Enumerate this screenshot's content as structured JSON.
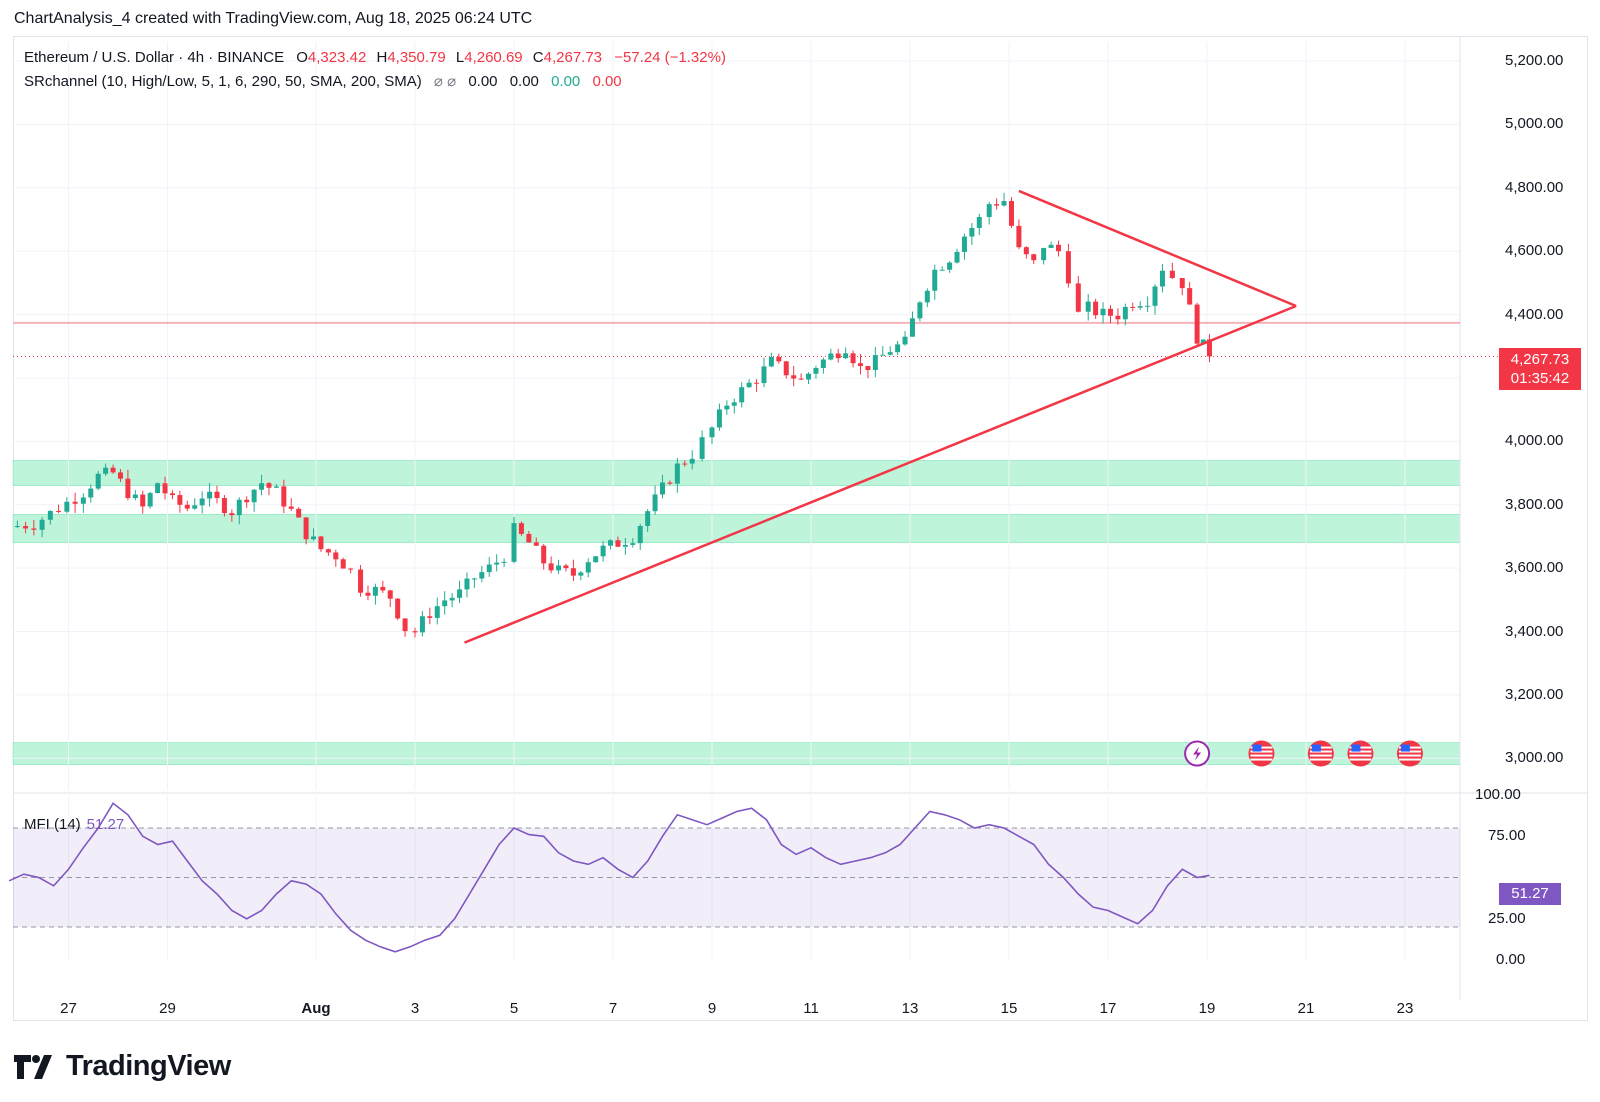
{
  "header": {
    "caption": "ChartAnalysis_4 created with TradingView.com, Aug 18, 2025 06:24 UTC"
  },
  "legend": {
    "symbol": "Ethereum / U.S. Dollar · 4h · BINANCE",
    "o_label": "O",
    "o": "4,323.42",
    "h_label": "H",
    "h": "4,350.79",
    "l_label": "L",
    "l": "4,260.69",
    "c_label": "C",
    "c": "4,267.73",
    "change": "−57.24 (−1.32%)",
    "indicator": "SRchannel (10, High/Low, 5, 1, 6, 290, 50, SMA, 200, SMA)",
    "ind_icons": "⌀ ⌀",
    "ind_v1": "0.00",
    "ind_v2": "0.00",
    "ind_v3": "0.00",
    "ind_v4": "0.00"
  },
  "price_tag": {
    "price": "4,267.73",
    "countdown": "01:35:42"
  },
  "mfi": {
    "label": "MFI (14)",
    "value": "51.27"
  },
  "branding": {
    "name": "TradingView"
  },
  "colors": {
    "up": "#22ab94",
    "down": "#f23645",
    "zone": "#b2f2d4",
    "mfi": "#7e57c2",
    "trend": "#f23645"
  },
  "chart_data": {
    "type": "candlestick",
    "title": "Ethereum / U.S. Dollar · 4h · BINANCE",
    "y_axis": {
      "range": [
        2900,
        5260
      ],
      "ticks": [
        "5,200.00",
        "5,000.00",
        "4,800.00",
        "4,600.00",
        "4,400.00",
        "4,200.00",
        "4,000.00",
        "3,800.00",
        "3,600.00",
        "3,400.00",
        "3,200.00",
        "3,000.00"
      ],
      "tick_values": [
        5200,
        5000,
        4800,
        4600,
        4400,
        4200,
        4000,
        3800,
        3600,
        3400,
        3200,
        3000
      ]
    },
    "x_axis": {
      "ticks": [
        "27",
        "29",
        "Aug",
        "3",
        "5",
        "7",
        "9",
        "11",
        "13",
        "15",
        "17",
        "19",
        "21",
        "23"
      ],
      "tick_days": [
        -5,
        -3,
        0,
        2,
        4,
        6,
        8,
        10,
        12,
        14,
        16,
        18,
        20,
        22
      ]
    },
    "close_path": [
      [
        -6.2,
        3730
      ],
      [
        -5.7,
        3740
      ],
      [
        -5.2,
        3790
      ],
      [
        -4.7,
        3840
      ],
      [
        -4.4,
        3890
      ],
      [
        -4.1,
        3900
      ],
      [
        -3.8,
        3840
      ],
      [
        -3.5,
        3790
      ],
      [
        -3.2,
        3870
      ],
      [
        -2.9,
        3810
      ],
      [
        -2.6,
        3790
      ],
      [
        -2.3,
        3830
      ],
      [
        -2.0,
        3810
      ],
      [
        -1.7,
        3780
      ],
      [
        -1.4,
        3830
      ],
      [
        -1.1,
        3870
      ],
      [
        -0.8,
        3840
      ],
      [
        -0.5,
        3780
      ],
      [
        -0.2,
        3710
      ],
      [
        0.1,
        3660
      ],
      [
        0.4,
        3640
      ],
      [
        0.7,
        3590
      ],
      [
        0.9,
        3540
      ],
      [
        1.2,
        3530
      ],
      [
        1.5,
        3510
      ],
      [
        1.8,
        3410
      ],
      [
        2.0,
        3400
      ],
      [
        2.3,
        3460
      ],
      [
        2.6,
        3500
      ],
      [
        2.9,
        3520
      ],
      [
        3.2,
        3570
      ],
      [
        3.5,
        3600
      ],
      [
        3.8,
        3640
      ],
      [
        4.0,
        3720
      ],
      [
        4.3,
        3680
      ],
      [
        4.6,
        3620
      ],
      [
        4.9,
        3590
      ],
      [
        5.2,
        3580
      ],
      [
        5.5,
        3630
      ],
      [
        5.8,
        3660
      ],
      [
        6.1,
        3680
      ],
      [
        6.4,
        3700
      ],
      [
        6.7,
        3780
      ],
      [
        7.0,
        3850
      ],
      [
        7.3,
        3920
      ],
      [
        7.6,
        3960
      ],
      [
        8.0,
        4040
      ],
      [
        8.3,
        4120
      ],
      [
        8.6,
        4160
      ],
      [
        8.9,
        4200
      ],
      [
        9.2,
        4250
      ],
      [
        9.5,
        4220
      ],
      [
        9.8,
        4190
      ],
      [
        10.1,
        4240
      ],
      [
        10.4,
        4270
      ],
      [
        10.7,
        4300
      ],
      [
        11.0,
        4230
      ],
      [
        11.3,
        4250
      ],
      [
        11.6,
        4290
      ],
      [
        11.9,
        4310
      ],
      [
        12.2,
        4450
      ],
      [
        12.5,
        4540
      ],
      [
        12.8,
        4580
      ],
      [
        13.1,
        4650
      ],
      [
        13.4,
        4700
      ],
      [
        13.6,
        4750
      ],
      [
        13.9,
        4760
      ],
      [
        14.2,
        4600
      ],
      [
        14.5,
        4560
      ],
      [
        14.7,
        4620
      ],
      [
        15.0,
        4600
      ],
      [
        15.2,
        4520
      ],
      [
        15.4,
        4400
      ],
      [
        15.6,
        4420
      ],
      [
        15.9,
        4400
      ],
      [
        16.2,
        4400
      ],
      [
        16.5,
        4440
      ],
      [
        16.8,
        4450
      ],
      [
        17.1,
        4550
      ],
      [
        17.3,
        4520
      ],
      [
        17.5,
        4500
      ],
      [
        17.8,
        4330
      ],
      [
        18.05,
        4268
      ]
    ],
    "candles_last": {
      "open": 4323.42,
      "high": 4350.79,
      "low": 4260.69,
      "close": 4267.73
    },
    "support_zones": [
      [
        2980,
        3050
      ],
      [
        3680,
        3770
      ],
      [
        3860,
        3940
      ]
    ],
    "horizontal_line": 4374,
    "trendlines": [
      {
        "name": "ascending support",
        "from": [
          3.0,
          3365
        ],
        "to": [
          19.8,
          4427
        ]
      },
      {
        "name": "descending resistance",
        "from": [
          14.2,
          4790
        ],
        "to": [
          19.8,
          4427
        ]
      }
    ],
    "mfi": {
      "levels": [
        100,
        75,
        25,
        0
      ],
      "band": [
        20,
        80
      ],
      "values": [
        [
          -6.2,
          48
        ],
        [
          -5.9,
          52
        ],
        [
          -5.6,
          50
        ],
        [
          -5.3,
          45
        ],
        [
          -5.0,
          55
        ],
        [
          -4.7,
          68
        ],
        [
          -4.4,
          80
        ],
        [
          -4.1,
          95
        ],
        [
          -3.8,
          88
        ],
        [
          -3.5,
          75
        ],
        [
          -3.2,
          70
        ],
        [
          -2.9,
          72
        ],
        [
          -2.6,
          60
        ],
        [
          -2.3,
          48
        ],
        [
          -2.0,
          40
        ],
        [
          -1.7,
          30
        ],
        [
          -1.4,
          25
        ],
        [
          -1.1,
          30
        ],
        [
          -0.8,
          40
        ],
        [
          -0.5,
          48
        ],
        [
          -0.2,
          46
        ],
        [
          0.1,
          40
        ],
        [
          0.4,
          28
        ],
        [
          0.7,
          18
        ],
        [
          1.0,
          12
        ],
        [
          1.3,
          8
        ],
        [
          1.6,
          5
        ],
        [
          1.9,
          8
        ],
        [
          2.2,
          12
        ],
        [
          2.5,
          15
        ],
        [
          2.8,
          25
        ],
        [
          3.1,
          40
        ],
        [
          3.4,
          55
        ],
        [
          3.7,
          70
        ],
        [
          4.0,
          80
        ],
        [
          4.3,
          76
        ],
        [
          4.6,
          75
        ],
        [
          4.9,
          65
        ],
        [
          5.2,
          60
        ],
        [
          5.5,
          58
        ],
        [
          5.8,
          62
        ],
        [
          6.1,
          55
        ],
        [
          6.4,
          50
        ],
        [
          6.7,
          60
        ],
        [
          7.0,
          75
        ],
        [
          7.3,
          88
        ],
        [
          7.6,
          85
        ],
        [
          7.9,
          82
        ],
        [
          8.2,
          86
        ],
        [
          8.5,
          90
        ],
        [
          8.8,
          92
        ],
        [
          9.1,
          85
        ],
        [
          9.4,
          70
        ],
        [
          9.7,
          64
        ],
        [
          10.0,
          68
        ],
        [
          10.3,
          62
        ],
        [
          10.6,
          58
        ],
        [
          10.9,
          60
        ],
        [
          11.2,
          62
        ],
        [
          11.5,
          65
        ],
        [
          11.8,
          70
        ],
        [
          12.1,
          80
        ],
        [
          12.4,
          90
        ],
        [
          12.7,
          88
        ],
        [
          13.0,
          85
        ],
        [
          13.3,
          80
        ],
        [
          13.6,
          82
        ],
        [
          13.9,
          80
        ],
        [
          14.2,
          75
        ],
        [
          14.5,
          70
        ],
        [
          14.8,
          58
        ],
        [
          15.1,
          50
        ],
        [
          15.4,
          40
        ],
        [
          15.7,
          32
        ],
        [
          16.0,
          30
        ],
        [
          16.3,
          26
        ],
        [
          16.6,
          22
        ],
        [
          16.9,
          30
        ],
        [
          17.2,
          45
        ],
        [
          17.5,
          55
        ],
        [
          17.8,
          50
        ],
        [
          18.05,
          51.27
        ]
      ]
    }
  }
}
